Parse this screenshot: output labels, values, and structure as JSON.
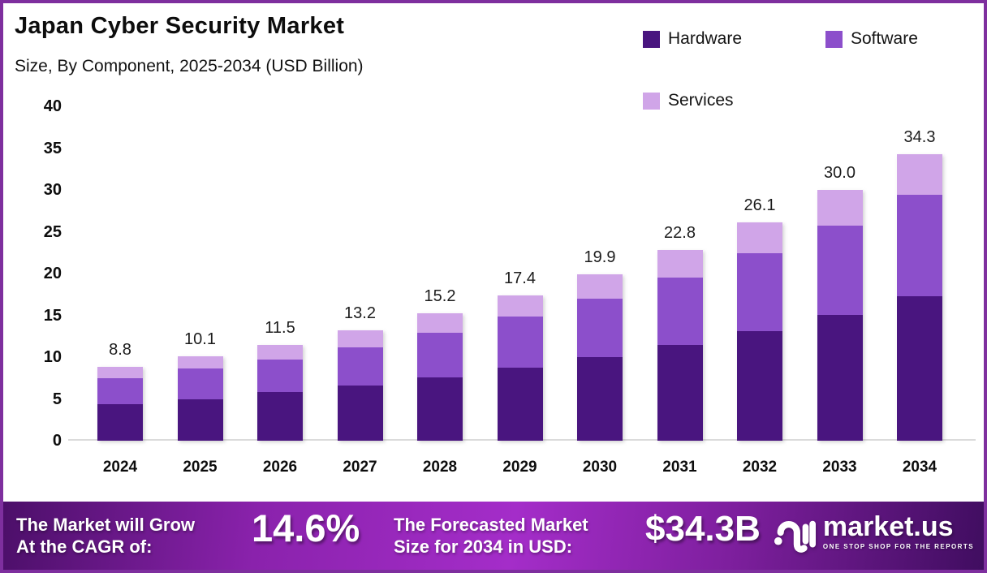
{
  "header": {
    "title": "Japan Cyber Security Market",
    "subtitle": "Size, By Component, 2025-2034 (USD Billion)"
  },
  "legend": {
    "items": [
      {
        "label": "Hardware",
        "color": "#49157F"
      },
      {
        "label": "Software",
        "color": "#8C4FCB"
      },
      {
        "label": "Services",
        "color": "#D0A5E8"
      }
    ]
  },
  "chart_data": {
    "type": "bar",
    "stacked": true,
    "title": "Japan Cyber Security Market Size, By Component, 2025-2034 (USD Billion)",
    "categories": [
      "2024",
      "2025",
      "2026",
      "2027",
      "2028",
      "2029",
      "2030",
      "2031",
      "2032",
      "2033",
      "2034"
    ],
    "series": [
      {
        "name": "Hardware",
        "color": "#49157F",
        "values": [
          4.4,
          5.0,
          5.8,
          6.6,
          7.6,
          8.7,
          10.0,
          11.5,
          13.1,
          15.1,
          17.3
        ]
      },
      {
        "name": "Software",
        "color": "#8C4FCB",
        "values": [
          3.1,
          3.6,
          3.9,
          4.6,
          5.3,
          6.2,
          7.0,
          8.0,
          9.3,
          10.6,
          12.1
        ]
      },
      {
        "name": "Services",
        "color": "#D0A5E8",
        "values": [
          1.3,
          1.5,
          1.8,
          2.0,
          2.3,
          2.5,
          2.9,
          3.3,
          3.7,
          4.3,
          4.9
        ]
      }
    ],
    "totals": [
      8.8,
      10.1,
      11.5,
      13.2,
      15.2,
      17.4,
      19.9,
      22.8,
      26.1,
      30.0,
      34.3
    ],
    "y_ticks": [
      0,
      5,
      10,
      15,
      20,
      25,
      30,
      35,
      40
    ],
    "ylim": [
      0,
      40
    ],
    "xlabel": "",
    "ylabel": "USD Billion",
    "grid": false,
    "legend_position": "top-right"
  },
  "footer": {
    "cagr": {
      "line1": "The Market will Grow",
      "line2": "At the CAGR of:",
      "value": "14.6%"
    },
    "forecast": {
      "line1": "The Forecasted Market",
      "line2": "Size for 2034 in USD:",
      "value": "$34.3B"
    },
    "brand": {
      "name": "market.us",
      "tagline": "ONE STOP SHOP FOR THE REPORTS"
    }
  },
  "colors": {
    "border": "#7E2F9E",
    "axis_line": "#DBDBDB",
    "banner_gradient": [
      "#4C0F69",
      "#A42DC9",
      "#400D60"
    ]
  }
}
